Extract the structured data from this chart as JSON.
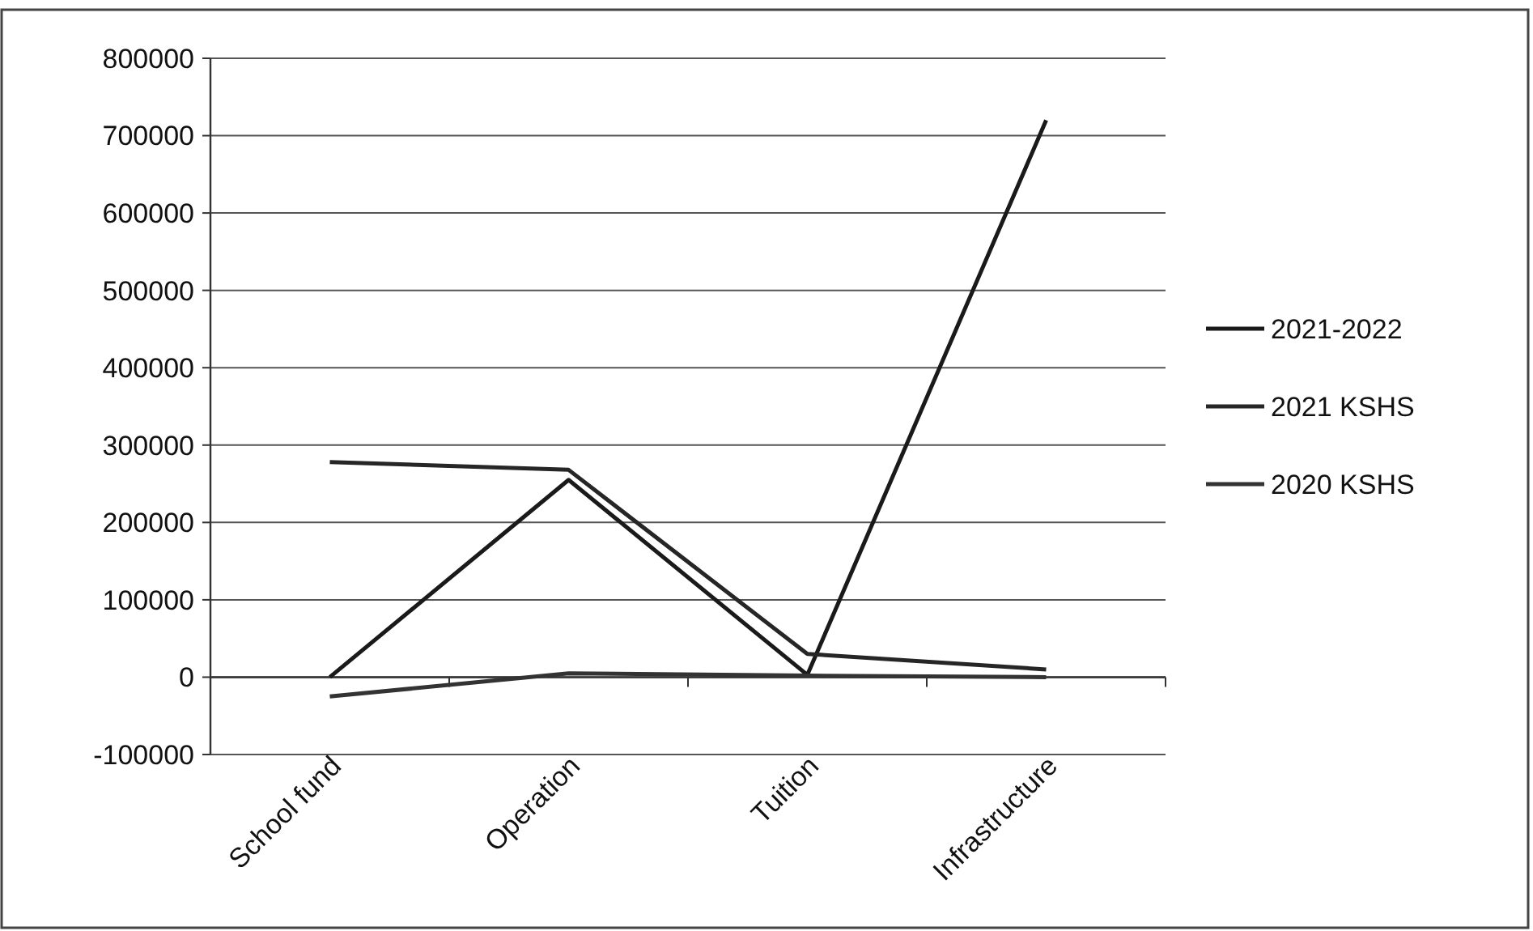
{
  "chart_data": {
    "type": "line",
    "categories": [
      "School fund",
      "Operation",
      "Tuition",
      "Infrastructure"
    ],
    "series": [
      {
        "name": "2021-2022",
        "color": "#1a1a1a",
        "values": [
          0,
          255000,
          3000,
          720000
        ]
      },
      {
        "name": "2021 KSHS",
        "color": "#262626",
        "values": [
          278000,
          268000,
          30000,
          10000
        ]
      },
      {
        "name": "2020 KSHS",
        "color": "#333333",
        "values": [
          -25000,
          5000,
          2000,
          0
        ]
      }
    ],
    "ylim": [
      -100000,
      800000
    ],
    "yticks": [
      -100000,
      0,
      100000,
      200000,
      300000,
      400000,
      500000,
      600000,
      700000,
      800000
    ],
    "grid": "y",
    "legend": "right",
    "marker": "none",
    "line_style": "solid"
  }
}
